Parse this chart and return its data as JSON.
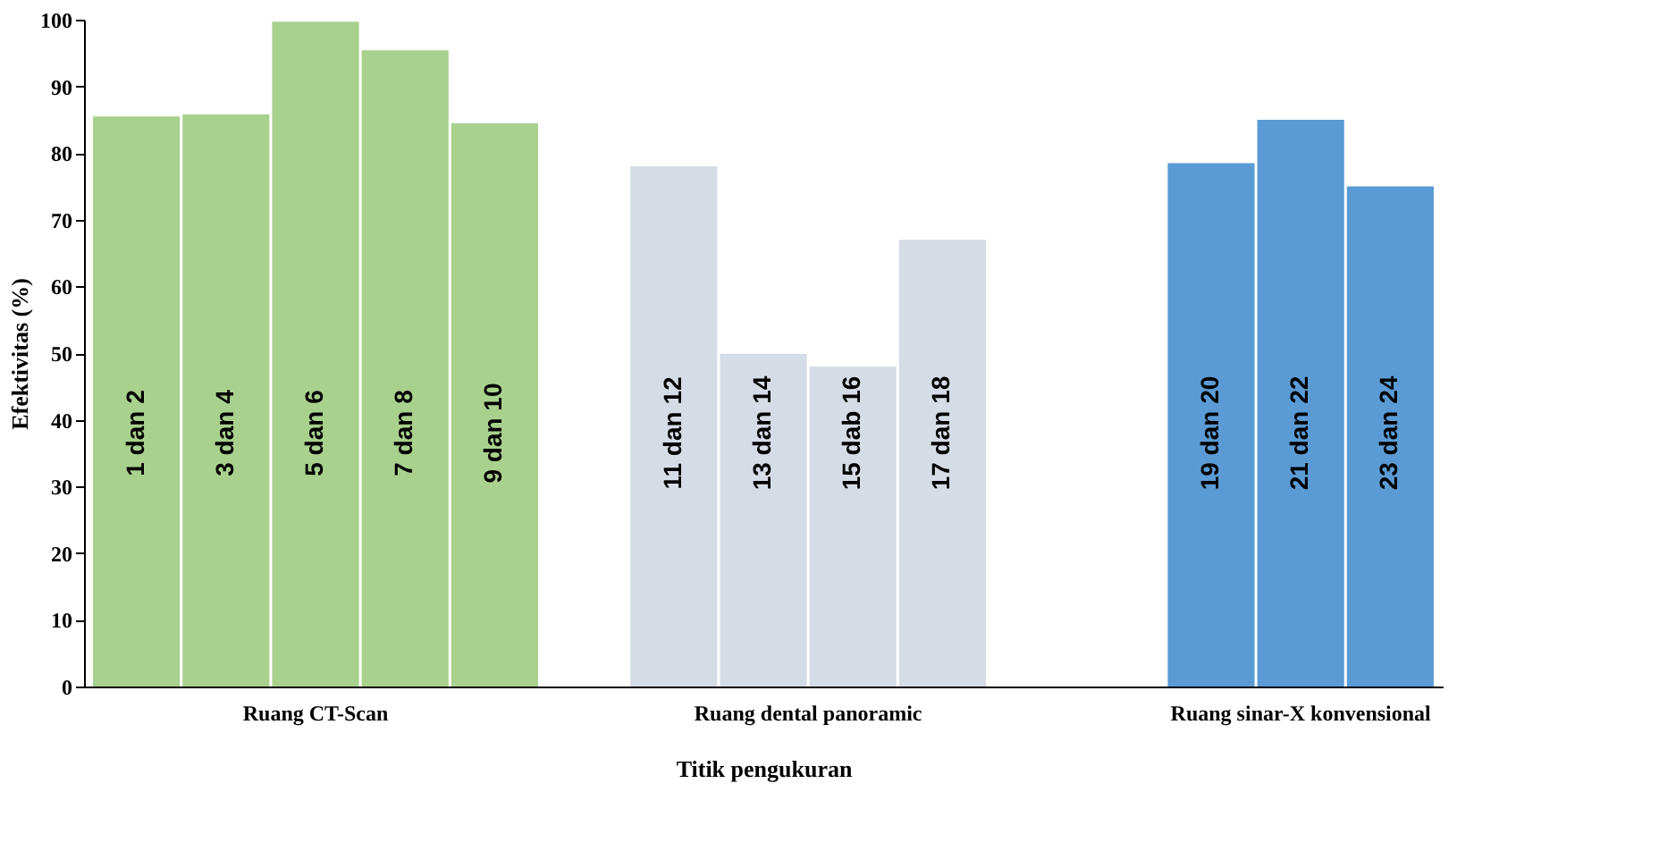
{
  "chart_data": {
    "type": "bar",
    "ylabel": "Efektivitas  (%)",
    "xlabel": "Titik pengukuran",
    "categories": [
      "1 dan 2",
      "3 dan 4",
      "5 dan 6",
      "7 dan 8",
      "9 dan 10",
      null,
      "11 dan 12",
      "13 dan 14",
      "15 dab 16",
      "17 dan 18",
      null,
      null,
      "19 dan 20",
      "21 dan 22",
      "23 dan 24"
    ],
    "values": [
      85.5,
      85.8,
      99.7,
      95.4,
      84.5,
      null,
      78,
      49.9,
      48,
      67,
      null,
      null,
      78.5,
      85,
      75
    ],
    "colors": [
      "#a9d18e",
      "#a9d18e",
      "#a9d18e",
      "#a9d18e",
      "#a9d18e",
      null,
      "#d6dce5",
      "#d6dce5",
      "#d6dce5",
      "#d6dce5",
      null,
      null,
      "#5b9bd5",
      "#5b9bd5",
      "#5b9bd5"
    ],
    "ylim": [
      0,
      100
    ],
    "yticks": [
      0,
      10,
      20,
      30,
      40,
      50,
      60,
      70,
      80,
      90,
      100
    ],
    "grid": false,
    "annotations": [
      "Ruang CT-Scan",
      "Ruang dental panoramic",
      "Ruang sinar-X konvensional"
    ]
  }
}
